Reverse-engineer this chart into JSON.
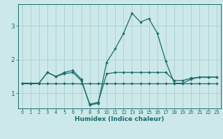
{
  "xlabel": "Humidex (Indice chaleur)",
  "bg_color": "#cde8e8",
  "grid_color": "#aacece",
  "line_color": "#1a6b6b",
  "xlim": [
    -0.5,
    23.5
  ],
  "ylim": [
    0.55,
    3.65
  ],
  "xticks": [
    0,
    1,
    2,
    3,
    4,
    5,
    6,
    7,
    8,
    9,
    10,
    11,
    12,
    13,
    14,
    15,
    16,
    17,
    18,
    19,
    20,
    21,
    22,
    23
  ],
  "yticks": [
    1,
    2,
    3
  ],
  "line1_x": [
    0,
    1,
    2,
    3,
    4,
    5,
    6,
    7,
    8,
    9,
    10,
    11,
    12,
    13,
    14,
    15,
    16,
    17,
    18,
    19,
    20,
    21,
    22,
    23
  ],
  "line1_y": [
    1.3,
    1.3,
    1.3,
    1.3,
    1.3,
    1.3,
    1.3,
    1.3,
    1.3,
    1.3,
    1.3,
    1.3,
    1.3,
    1.3,
    1.3,
    1.3,
    1.3,
    1.3,
    1.3,
    1.3,
    1.3,
    1.3,
    1.3,
    1.3
  ],
  "line2_x": [
    0,
    1,
    2,
    3,
    4,
    5,
    6,
    7,
    8,
    9,
    10,
    11,
    12,
    13,
    14,
    15,
    16,
    17,
    18,
    19,
    20,
    21,
    22,
    23
  ],
  "line2_y": [
    1.3,
    1.3,
    1.3,
    1.62,
    1.5,
    1.58,
    1.62,
    1.38,
    0.68,
    0.73,
    1.58,
    1.62,
    1.62,
    1.62,
    1.62,
    1.62,
    1.62,
    1.62,
    1.38,
    1.38,
    1.45,
    1.48,
    1.48,
    1.48
  ],
  "line3_x": [
    0,
    1,
    2,
    3,
    4,
    5,
    6,
    7,
    8,
    9,
    10,
    11,
    12,
    13,
    14,
    15,
    16,
    17,
    18,
    19,
    20,
    21,
    22,
    23
  ],
  "line3_y": [
    1.3,
    1.3,
    1.3,
    1.62,
    1.5,
    1.62,
    1.68,
    1.42,
    0.65,
    0.7,
    1.92,
    2.32,
    2.78,
    3.38,
    3.12,
    3.22,
    2.78,
    1.95,
    1.3,
    1.3,
    1.42,
    1.48,
    1.48,
    1.48
  ]
}
